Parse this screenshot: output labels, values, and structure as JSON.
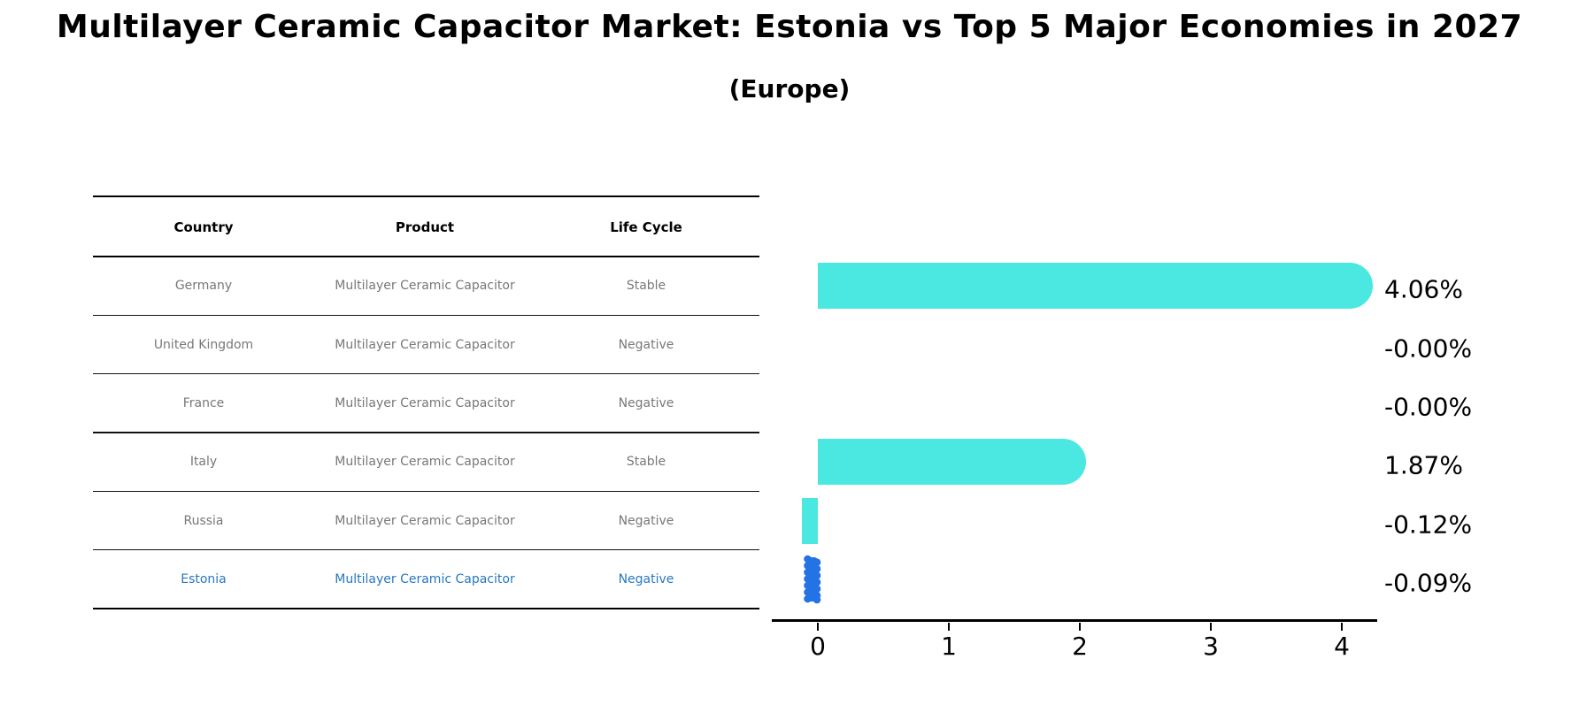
{
  "title": "Multilayer Ceramic Capacitor Market: Estonia vs Top 5 Major Economies in 2027",
  "subtitle": "(Europe)",
  "table": {
    "headers": [
      "Country",
      "Product",
      "Life Cycle"
    ],
    "rows": [
      {
        "country": "Germany",
        "product": "Multilayer Ceramic Capacitor",
        "life_cycle": "Stable",
        "value": 4.06,
        "value_label": "4.06%",
        "highlight": false
      },
      {
        "country": "United Kingdom",
        "product": "Multilayer Ceramic Capacitor",
        "life_cycle": "Negative",
        "value": -0.0,
        "value_label": "-0.00%",
        "highlight": false
      },
      {
        "country": "France",
        "product": "Multilayer Ceramic Capacitor",
        "life_cycle": "Negative",
        "value": -0.0,
        "value_label": "-0.00%",
        "highlight": false
      },
      {
        "country": "Italy",
        "product": "Multilayer Ceramic Capacitor",
        "life_cycle": "Stable",
        "value": 1.87,
        "value_label": "1.87%",
        "highlight": false
      },
      {
        "country": "Russia",
        "product": "Multilayer Ceramic Capacitor",
        "life_cycle": "Negative",
        "value": -0.12,
        "value_label": "-0.12%",
        "highlight": false
      },
      {
        "country": "Estonia",
        "product": "Multilayer Ceramic Capacitor",
        "life_cycle": "Negative",
        "value": -0.09,
        "value_label": "-0.09%",
        "highlight": true
      }
    ]
  },
  "chart_data": {
    "type": "bar",
    "orientation": "horizontal",
    "title": "Multilayer Ceramic Capacitor Market: Estonia vs Top 5 Major Economies in 2027",
    "subtitle": "(Europe)",
    "categories": [
      "Germany",
      "United Kingdom",
      "France",
      "Italy",
      "Russia",
      "Estonia"
    ],
    "values": [
      4.06,
      -0.0,
      -0.0,
      1.87,
      -0.12,
      -0.09
    ],
    "value_labels": [
      "4.06%",
      "-0.00%",
      "-0.00%",
      "1.87%",
      "-0.12%",
      "-0.09%"
    ],
    "xticks": [
      "0",
      "1",
      "2",
      "3",
      "4"
    ],
    "xtick_values": [
      0,
      1,
      2,
      3,
      4
    ],
    "xlim": [
      -0.35,
      4.27
    ],
    "xlabel": "",
    "ylabel": "",
    "grid": false,
    "legend": false,
    "bar_color": "#4AE8E0",
    "highlight_bar_color": "#2373E6",
    "highlight_index": 5
  },
  "colors": {
    "bar": "#4AE8E0",
    "highlight_bar": "#2373E6",
    "highlight_text": "#2878BE",
    "cell_text": "#787878",
    "header_text": "#000000",
    "axis": "#000000"
  }
}
